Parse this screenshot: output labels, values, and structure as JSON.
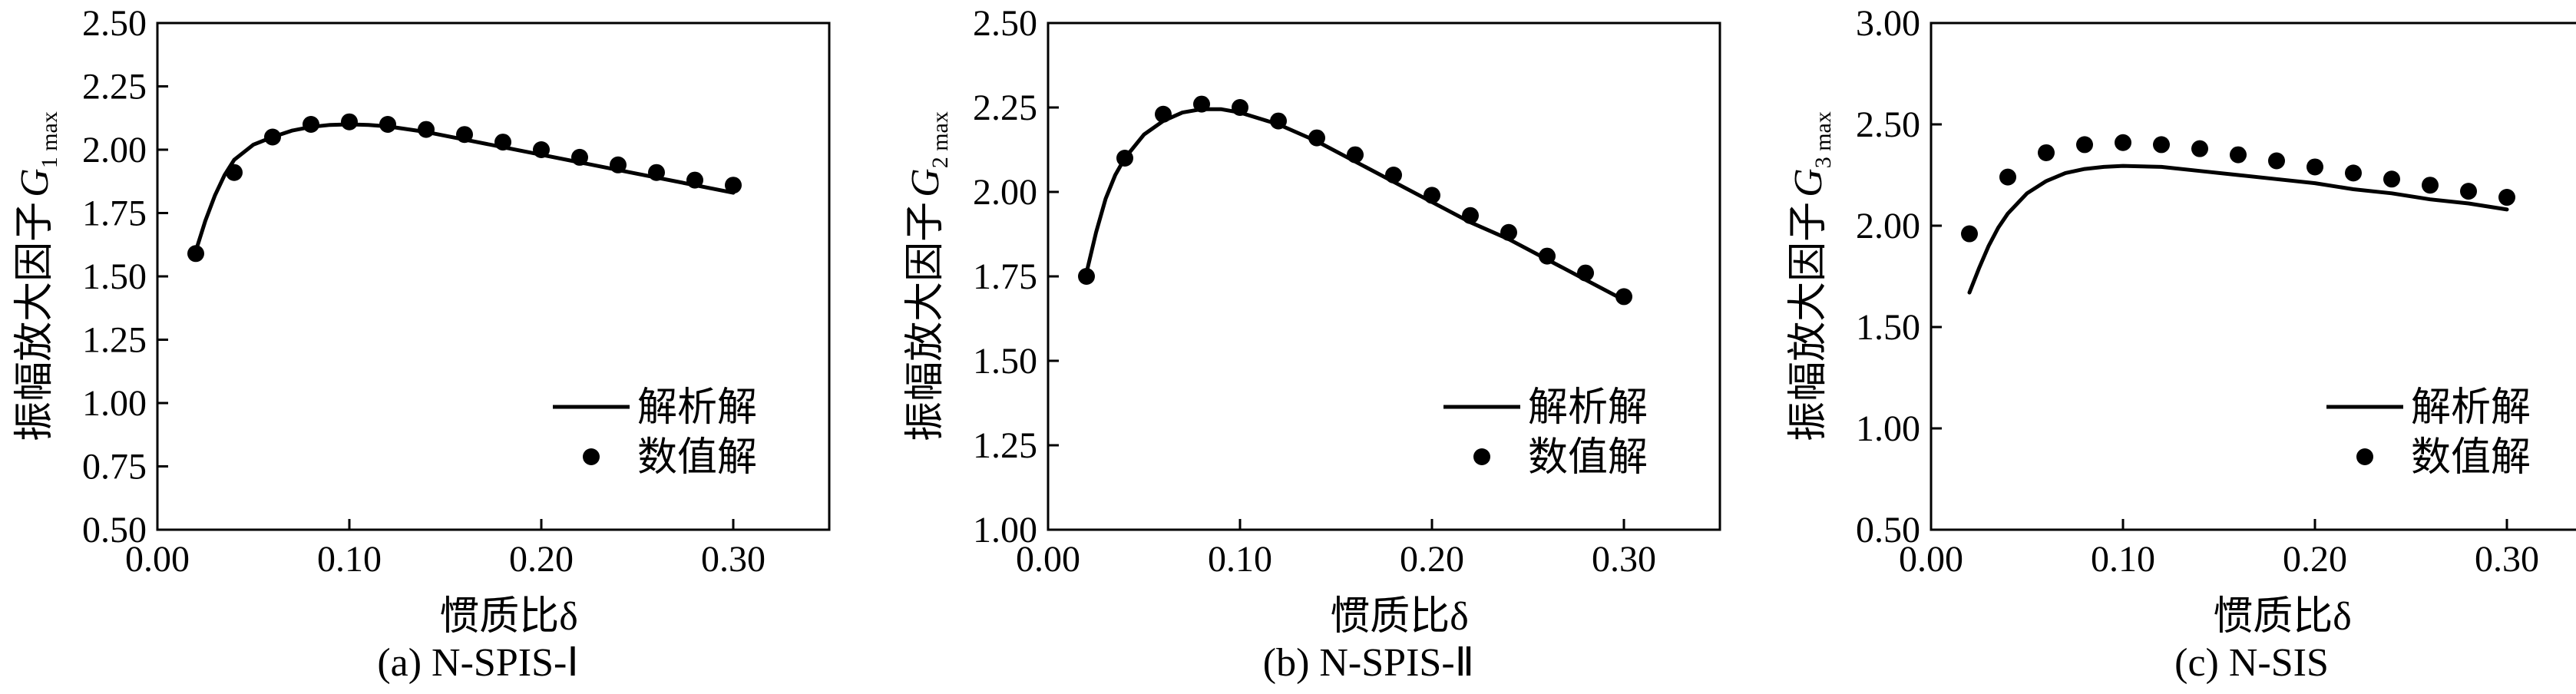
{
  "chart_data": [
    {
      "type": "line",
      "caption": "(a) N-SPIS-Ⅰ",
      "xlabel": "惯质比δ",
      "ylabel_prefix": "振幅放大因子",
      "ylabel_symbol": "G",
      "ylabel_subscript": "1 max",
      "xlim": [
        0.0,
        0.35
      ],
      "ylim": [
        0.5,
        2.5
      ],
      "xticks": [
        0.0,
        0.1,
        0.2,
        0.3
      ],
      "xtick_labels": [
        "0.00",
        "0.10",
        "0.20",
        "0.30"
      ],
      "yticks": [
        0.5,
        0.75,
        1.0,
        1.25,
        1.5,
        1.75,
        2.0,
        2.25,
        2.5
      ],
      "ytick_labels": [
        "0.50",
        "0.75",
        "1.00",
        "1.25",
        "1.50",
        "1.75",
        "2.00",
        "2.25",
        "2.50"
      ],
      "legend_position": "bottom-right",
      "grid": false,
      "series": [
        {
          "name": "解析解",
          "kind": "line",
          "x": [
            0.02,
            0.025,
            0.03,
            0.035,
            0.04,
            0.05,
            0.06,
            0.07,
            0.08,
            0.09,
            0.1,
            0.11,
            0.12,
            0.14,
            0.16,
            0.18,
            0.2,
            0.22,
            0.24,
            0.26,
            0.28,
            0.3
          ],
          "y": [
            1.6,
            1.72,
            1.82,
            1.9,
            1.96,
            2.02,
            2.05,
            2.075,
            2.09,
            2.098,
            2.1,
            2.098,
            2.092,
            2.07,
            2.04,
            2.01,
            1.98,
            1.95,
            1.92,
            1.89,
            1.86,
            1.83
          ]
        },
        {
          "name": "数值解",
          "kind": "scatter",
          "x": [
            0.02,
            0.04,
            0.06,
            0.08,
            0.1,
            0.12,
            0.14,
            0.16,
            0.18,
            0.2,
            0.22,
            0.24,
            0.26,
            0.28,
            0.3
          ],
          "y": [
            1.59,
            1.91,
            2.05,
            2.1,
            2.11,
            2.1,
            2.08,
            2.06,
            2.03,
            2.0,
            1.97,
            1.94,
            1.91,
            1.88,
            1.86
          ]
        }
      ]
    },
    {
      "type": "line",
      "caption": "(b) N-SPIS-Ⅱ",
      "xlabel": "惯质比δ",
      "ylabel_prefix": "振幅放大因子",
      "ylabel_symbol": "G",
      "ylabel_subscript": "2 max",
      "xlim": [
        0.0,
        0.35
      ],
      "ylim": [
        1.0,
        2.5
      ],
      "xticks": [
        0.0,
        0.1,
        0.2,
        0.3
      ],
      "xtick_labels": [
        "0.00",
        "0.10",
        "0.20",
        "0.30"
      ],
      "yticks": [
        1.0,
        1.25,
        1.5,
        1.75,
        2.0,
        2.25,
        2.5
      ],
      "ytick_labels": [
        "1.00",
        "1.25",
        "1.50",
        "1.75",
        "2.00",
        "2.25",
        "2.50"
      ],
      "legend_position": "bottom-right",
      "grid": false,
      "series": [
        {
          "name": "解析解",
          "kind": "line",
          "x": [
            0.02,
            0.025,
            0.03,
            0.035,
            0.04,
            0.05,
            0.06,
            0.07,
            0.08,
            0.09,
            0.1,
            0.12,
            0.14,
            0.16,
            0.18,
            0.2,
            0.22,
            0.24,
            0.26,
            0.28,
            0.3
          ],
          "y": [
            1.76,
            1.88,
            1.98,
            2.05,
            2.1,
            2.17,
            2.21,
            2.235,
            2.245,
            2.245,
            2.235,
            2.2,
            2.15,
            2.09,
            2.03,
            1.97,
            1.91,
            1.86,
            1.8,
            1.74,
            1.68
          ]
        },
        {
          "name": "数值解",
          "kind": "scatter",
          "x": [
            0.02,
            0.04,
            0.06,
            0.08,
            0.1,
            0.12,
            0.14,
            0.16,
            0.18,
            0.2,
            0.22,
            0.24,
            0.26,
            0.28,
            0.3
          ],
          "y": [
            1.75,
            2.1,
            2.23,
            2.26,
            2.25,
            2.21,
            2.16,
            2.11,
            2.05,
            1.99,
            1.93,
            1.88,
            1.81,
            1.76,
            1.69
          ]
        }
      ]
    },
    {
      "type": "line",
      "caption": "(c) N-SIS",
      "xlabel": "惯质比δ",
      "ylabel_prefix": "振幅放大因子",
      "ylabel_symbol": "G",
      "ylabel_subscript": "3 max",
      "xlim": [
        0.0,
        0.35
      ],
      "ylim": [
        0.5,
        3.0
      ],
      "xticks": [
        0.0,
        0.1,
        0.2,
        0.3
      ],
      "xtick_labels": [
        "0.00",
        "0.10",
        "0.20",
        "0.30"
      ],
      "yticks": [
        0.5,
        1.0,
        1.5,
        2.0,
        2.5,
        3.0
      ],
      "ytick_labels": [
        "0.50",
        "1.00",
        "1.50",
        "2.00",
        "2.50",
        "3.00"
      ],
      "legend_position": "bottom-right",
      "grid": false,
      "series": [
        {
          "name": "解析解",
          "kind": "line",
          "x": [
            0.02,
            0.025,
            0.03,
            0.035,
            0.04,
            0.05,
            0.06,
            0.07,
            0.08,
            0.09,
            0.1,
            0.12,
            0.14,
            0.16,
            0.18,
            0.2,
            0.22,
            0.24,
            0.26,
            0.28,
            0.3
          ],
          "y": [
            1.67,
            1.79,
            1.9,
            1.99,
            2.06,
            2.16,
            2.22,
            2.26,
            2.28,
            2.29,
            2.295,
            2.29,
            2.27,
            2.25,
            2.23,
            2.21,
            2.18,
            2.16,
            2.13,
            2.11,
            2.08
          ]
        },
        {
          "name": "数值解",
          "kind": "scatter",
          "x": [
            0.02,
            0.04,
            0.06,
            0.08,
            0.1,
            0.12,
            0.14,
            0.16,
            0.18,
            0.2,
            0.22,
            0.24,
            0.26,
            0.28,
            0.3
          ],
          "y": [
            1.96,
            2.24,
            2.36,
            2.4,
            2.41,
            2.4,
            2.38,
            2.35,
            2.32,
            2.29,
            2.26,
            2.23,
            2.2,
            2.17,
            2.14
          ]
        }
      ]
    }
  ]
}
